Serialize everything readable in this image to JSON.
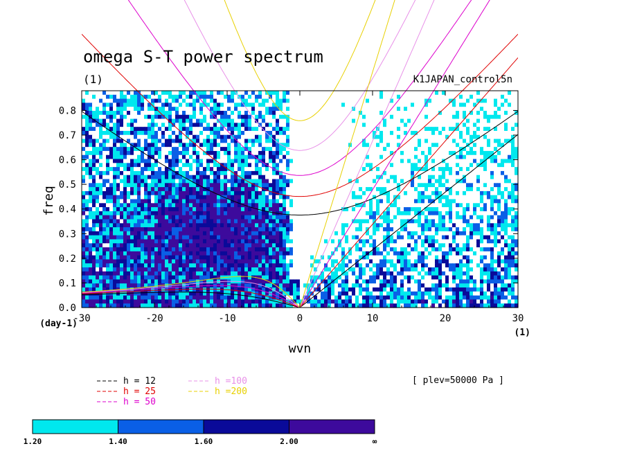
{
  "chart_data": {
    "type": "heatmap",
    "title": "omega S-T power spectrum",
    "subtitle": "(1)",
    "run_label": "K1JAPAN_control5n",
    "xlabel": "wvn",
    "ylabel": "freq",
    "xunit_label": "(1)",
    "yunit_label": "(day-1)",
    "xlim": [
      -30,
      30
    ],
    "ylim": [
      0,
      0.88
    ],
    "xticks": [
      -30,
      -20,
      -10,
      0,
      10,
      20,
      30
    ],
    "xtick_labels": [
      "-30",
      "-20",
      "-10",
      "0",
      "10",
      "20",
      "30"
    ],
    "yticks": [
      0,
      0.1,
      0.2,
      0.3,
      0.4,
      0.5,
      0.6,
      0.7,
      0.8
    ],
    "ytick_labels": [
      "0.0",
      "0.1",
      "0.2",
      "0.3",
      "0.4",
      "0.5",
      "0.6",
      "0.7",
      "0.8"
    ],
    "annotation": "[ plev=50000 Pa ]",
    "colorbar": {
      "levels": [
        "1.20",
        "1.40",
        "1.60",
        "2.00",
        "∞"
      ],
      "colors": [
        "#00e8ee",
        "#0a5fe6",
        "#0a0a99",
        "#3d0a9c"
      ]
    },
    "background_color": "#ffffff",
    "dispersion_curves": [
      {
        "label": "h = 12",
        "h": 12,
        "color": "#000000"
      },
      {
        "label": "h = 25",
        "h": 25,
        "color": "#e00000"
      },
      {
        "label": "h = 50",
        "h": 50,
        "color": "#dd00cc"
      },
      {
        "label": "h =100",
        "h": 100,
        "color": "#e890e8"
      },
      {
        "label": "h =200",
        "h": 200,
        "color": "#e8d000"
      }
    ]
  }
}
